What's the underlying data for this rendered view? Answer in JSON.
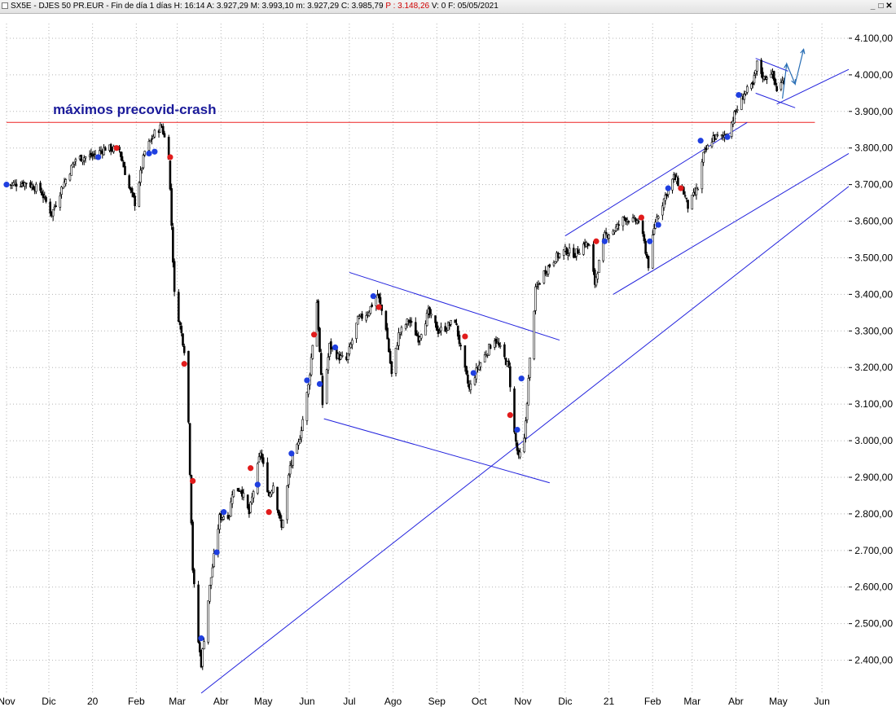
{
  "window": {
    "title_parts": {
      "symbol": "SX5E - DJES 50 PR.EUR - Fin de día 1 días",
      "high": "H: 16:14",
      "open": "A: 3.927,29",
      "max": "M: 3.993,10",
      "min": "m: 3.927,29",
      "close": "C: 3.985,79",
      "p": "P : 3.148,26",
      "vol": "V: 0",
      "date": "F: 05/05/2021"
    },
    "controls": {
      "minimize": "_",
      "restore": "□",
      "close": "✕"
    }
  },
  "colors": {
    "background": "#ffffff",
    "grid": "#b5b5b5",
    "candle": "#000000",
    "trendline": "#2222dd",
    "resistance": "#ee2222",
    "annotation": "#1a1a9a",
    "dot_blue": "#1f3fe0",
    "dot_red": "#e11b1b",
    "arrow": "#2a6fb5"
  },
  "chart_data": {
    "type": "line",
    "subtype": "candlestick",
    "title": "",
    "xlabel": "",
    "ylabel": "",
    "ylim": [
      2310,
      4140
    ],
    "y_ticks": [
      "4.100,00",
      "4.000,00",
      "3.900,00",
      "3.800,00",
      "3.700,00",
      "3.600,00",
      "3.500,00",
      "3.400,00",
      "3.300,00",
      "3.200,00",
      "3.100,00",
      "3.000,00",
      "2.900,00",
      "2.800,00",
      "2.700,00",
      "2.600,00",
      "2.500,00",
      "2.400,00"
    ],
    "y_tick_values": [
      4100,
      4000,
      3900,
      3800,
      3700,
      3600,
      3500,
      3400,
      3300,
      3200,
      3100,
      3000,
      2900,
      2800,
      2700,
      2600,
      2500,
      2400
    ],
    "x_range": [
      "2019-11-01",
      "2021-06-20"
    ],
    "x_ticks": [
      {
        "date": "2019-11-01",
        "label": "Nov"
      },
      {
        "date": "2019-12-01",
        "label": "Dic"
      },
      {
        "date": "2020-01-01",
        "label": "20"
      },
      {
        "date": "2020-02-01",
        "label": "Feb"
      },
      {
        "date": "2020-03-01",
        "label": "Mar"
      },
      {
        "date": "2020-04-01",
        "label": "Abr"
      },
      {
        "date": "2020-05-01",
        "label": "May"
      },
      {
        "date": "2020-06-01",
        "label": "Jun"
      },
      {
        "date": "2020-07-01",
        "label": "Jul"
      },
      {
        "date": "2020-08-01",
        "label": "Ago"
      },
      {
        "date": "2020-09-01",
        "label": "Sep"
      },
      {
        "date": "2020-10-01",
        "label": "Oct"
      },
      {
        "date": "2020-11-01",
        "label": "Nov"
      },
      {
        "date": "2020-12-01",
        "label": "Dic"
      },
      {
        "date": "2021-01-01",
        "label": "21"
      },
      {
        "date": "2021-02-01",
        "label": "Feb"
      },
      {
        "date": "2021-03-01",
        "label": "Mar"
      },
      {
        "date": "2021-04-01",
        "label": "Abr"
      },
      {
        "date": "2021-05-01",
        "label": "May"
      },
      {
        "date": "2021-06-01",
        "label": "Jun"
      }
    ],
    "grid": true,
    "price_path": [
      [
        "2019-11-01",
        3700
      ],
      [
        "2019-11-15",
        3705
      ],
      [
        "2019-11-25",
        3685
      ],
      [
        "2019-12-03",
        3620
      ],
      [
        "2019-12-10",
        3690
      ],
      [
        "2019-12-20",
        3770
      ],
      [
        "2020-01-02",
        3780
      ],
      [
        "2020-01-10",
        3800
      ],
      [
        "2020-01-20",
        3795
      ],
      [
        "2020-01-27",
        3690
      ],
      [
        "2020-01-31",
        3650
      ],
      [
        "2020-02-07",
        3790
      ],
      [
        "2020-02-14",
        3840
      ],
      [
        "2020-02-19",
        3860
      ],
      [
        "2020-02-24",
        3780
      ],
      [
        "2020-02-28",
        3400
      ],
      [
        "2020-03-06",
        3250
      ],
      [
        "2020-03-09",
        3050
      ],
      [
        "2020-03-12",
        2650
      ],
      [
        "2020-03-16",
        2450
      ],
      [
        "2020-03-18",
        2390
      ],
      [
        "2020-03-24",
        2600
      ],
      [
        "2020-03-31",
        2790
      ],
      [
        "2020-04-07",
        2800
      ],
      [
        "2020-04-09",
        2860
      ],
      [
        "2020-04-15",
        2870
      ],
      [
        "2020-04-21",
        2800
      ],
      [
        "2020-04-29",
        2970
      ],
      [
        "2020-05-05",
        2850
      ],
      [
        "2020-05-08",
        2880
      ],
      [
        "2020-05-14",
        2760
      ],
      [
        "2020-05-20",
        2930
      ],
      [
        "2020-05-26",
        2990
      ],
      [
        "2020-06-02",
        3150
      ],
      [
        "2020-06-08",
        3380
      ],
      [
        "2020-06-12",
        3100
      ],
      [
        "2020-06-17",
        3260
      ],
      [
        "2020-06-23",
        3230
      ],
      [
        "2020-06-29",
        3220
      ],
      [
        "2020-07-07",
        3330
      ],
      [
        "2020-07-14",
        3350
      ],
      [
        "2020-07-21",
        3400
      ],
      [
        "2020-07-27",
        3310
      ],
      [
        "2020-07-31",
        3180
      ],
      [
        "2020-08-05",
        3290
      ],
      [
        "2020-08-12",
        3330
      ],
      [
        "2020-08-19",
        3280
      ],
      [
        "2020-08-26",
        3350
      ],
      [
        "2020-09-02",
        3300
      ],
      [
        "2020-09-08",
        3310
      ],
      [
        "2020-09-14",
        3330
      ],
      [
        "2020-09-21",
        3190
      ],
      [
        "2020-09-24",
        3140
      ],
      [
        "2020-09-30",
        3200
      ],
      [
        "2020-10-06",
        3240
      ],
      [
        "2020-10-12",
        3280
      ],
      [
        "2020-10-16",
        3250
      ],
      [
        "2020-10-22",
        3200
      ],
      [
        "2020-10-26",
        3020
      ],
      [
        "2020-10-29",
        2950
      ],
      [
        "2020-11-02",
        3000
      ],
      [
        "2020-11-06",
        3220
      ],
      [
        "2020-11-10",
        3410
      ],
      [
        "2020-11-16",
        3460
      ],
      [
        "2020-11-24",
        3500
      ],
      [
        "2020-12-01",
        3520
      ],
      [
        "2020-12-08",
        3510
      ],
      [
        "2020-12-15",
        3540
      ],
      [
        "2020-12-18",
        3530
      ],
      [
        "2020-12-22",
        3430
      ],
      [
        "2020-12-29",
        3560
      ],
      [
        "2021-01-06",
        3580
      ],
      [
        "2021-01-12",
        3610
      ],
      [
        "2021-01-18",
        3600
      ],
      [
        "2021-01-22",
        3600
      ],
      [
        "2021-01-26",
        3540
      ],
      [
        "2021-01-29",
        3480
      ],
      [
        "2021-02-03",
        3600
      ],
      [
        "2021-02-10",
        3670
      ],
      [
        "2021-02-16",
        3720
      ],
      [
        "2021-02-22",
        3690
      ],
      [
        "2021-02-26",
        3640
      ],
      [
        "2021-03-05",
        3690
      ],
      [
        "2021-03-09",
        3780
      ],
      [
        "2021-03-16",
        3830
      ],
      [
        "2021-03-22",
        3830
      ],
      [
        "2021-03-26",
        3840
      ],
      [
        "2021-04-01",
        3900
      ],
      [
        "2021-04-07",
        3950
      ],
      [
        "2021-04-13",
        3970
      ],
      [
        "2021-04-16",
        4030
      ],
      [
        "2021-04-21",
        3990
      ],
      [
        "2021-04-26",
        4010
      ],
      [
        "2021-04-30",
        3960
      ],
      [
        "2021-05-05",
        3986
      ]
    ],
    "markers": [
      {
        "date": "2019-11-01",
        "y": 3700,
        "color": "blue"
      },
      {
        "date": "2020-01-05",
        "y": 3775,
        "color": "blue"
      },
      {
        "date": "2020-01-18",
        "y": 3800,
        "color": "red"
      },
      {
        "date": "2020-02-10",
        "y": 3785,
        "color": "blue"
      },
      {
        "date": "2020-02-14",
        "y": 3790,
        "color": "blue"
      },
      {
        "date": "2020-02-25",
        "y": 3775,
        "color": "red"
      },
      {
        "date": "2020-03-06",
        "y": 3210,
        "color": "red"
      },
      {
        "date": "2020-03-12",
        "y": 2890,
        "color": "red"
      },
      {
        "date": "2020-03-18",
        "y": 2460,
        "color": "blue"
      },
      {
        "date": "2020-03-29",
        "y": 2695,
        "color": "blue"
      },
      {
        "date": "2020-04-03",
        "y": 2805,
        "color": "blue"
      },
      {
        "date": "2020-04-22",
        "y": 2925,
        "color": "red"
      },
      {
        "date": "2020-04-27",
        "y": 2880,
        "color": "blue"
      },
      {
        "date": "2020-05-05",
        "y": 2805,
        "color": "red"
      },
      {
        "date": "2020-05-21",
        "y": 2965,
        "color": "blue"
      },
      {
        "date": "2020-06-01",
        "y": 3165,
        "color": "blue"
      },
      {
        "date": "2020-06-06",
        "y": 3290,
        "color": "red"
      },
      {
        "date": "2020-06-10",
        "y": 3155,
        "color": "blue"
      },
      {
        "date": "2020-06-21",
        "y": 3255,
        "color": "blue"
      },
      {
        "date": "2020-07-18",
        "y": 3395,
        "color": "blue"
      },
      {
        "date": "2020-07-22",
        "y": 3365,
        "color": "red"
      },
      {
        "date": "2020-09-21",
        "y": 3285,
        "color": "red"
      },
      {
        "date": "2020-09-27",
        "y": 3185,
        "color": "blue"
      },
      {
        "date": "2020-10-23",
        "y": 3070,
        "color": "red"
      },
      {
        "date": "2020-10-28",
        "y": 3030,
        "color": "blue"
      },
      {
        "date": "2020-10-31",
        "y": 3170,
        "color": "blue"
      },
      {
        "date": "2020-12-23",
        "y": 3545,
        "color": "red"
      },
      {
        "date": "2020-12-29",
        "y": 3545,
        "color": "blue"
      },
      {
        "date": "2021-01-24",
        "y": 3610,
        "color": "red"
      },
      {
        "date": "2021-01-30",
        "y": 3545,
        "color": "blue"
      },
      {
        "date": "2021-02-05",
        "y": 3590,
        "color": "blue"
      },
      {
        "date": "2021-02-12",
        "y": 3690,
        "color": "blue"
      },
      {
        "date": "2021-02-21",
        "y": 3690,
        "color": "red"
      },
      {
        "date": "2021-03-07",
        "y": 3820,
        "color": "blue"
      },
      {
        "date": "2021-03-26",
        "y": 3830,
        "color": "blue"
      },
      {
        "date": "2021-04-03",
        "y": 3945,
        "color": "blue"
      }
    ],
    "lines": [
      {
        "color": "resistance",
        "from": [
          "2019-11-01",
          3870
        ],
        "to": [
          "2021-05-27",
          3870
        ]
      },
      {
        "color": "trendline",
        "from": [
          "2020-03-18",
          2310
        ],
        "to": [
          "2021-06-20",
          3695
        ]
      },
      {
        "color": "trendline",
        "from": [
          "2020-07-01",
          3460
        ],
        "to": [
          "2020-11-27",
          3275
        ]
      },
      {
        "color": "trendline",
        "from": [
          "2020-06-13",
          3060
        ],
        "to": [
          "2020-11-20",
          2885
        ]
      },
      {
        "color": "trendline",
        "from": [
          "2020-12-01",
          3560
        ],
        "to": [
          "2021-04-09",
          3870
        ]
      },
      {
        "color": "trendline",
        "from": [
          "2021-01-04",
          3400
        ],
        "to": [
          "2021-06-20",
          3785
        ]
      },
      {
        "color": "trendline",
        "from": [
          "2021-04-30",
          3920
        ],
        "to": [
          "2021-06-20",
          4015
        ]
      },
      {
        "color": "trendline",
        "from": [
          "2021-04-15",
          4045
        ],
        "to": [
          "2021-05-08",
          4010
        ]
      },
      {
        "color": "trendline",
        "from": [
          "2021-04-15",
          3950
        ],
        "to": [
          "2021-05-13",
          3910
        ]
      }
    ],
    "arrows": [
      {
        "points": [
          [
            "2021-05-04",
            3935
          ],
          [
            "2021-05-07",
            4030
          ],
          [
            "2021-05-13",
            3975
          ],
          [
            "2021-05-19",
            4070
          ]
        ]
      }
    ],
    "annotations": [
      {
        "text": "máximos precovid-crash",
        "date": "2019-12-04",
        "y": 3893
      }
    ]
  }
}
